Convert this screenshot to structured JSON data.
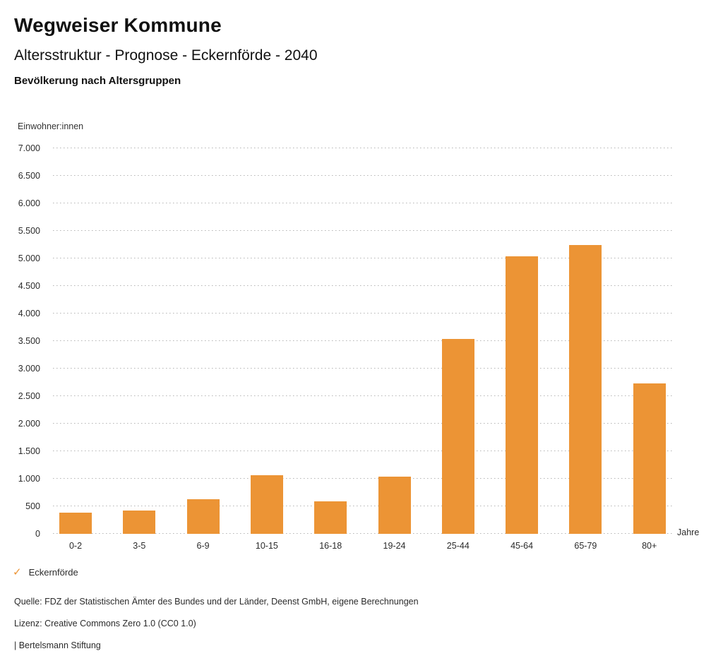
{
  "header": {
    "title": "Wegweiser Kommune",
    "subtitle": "Altersstruktur - Prognose - Eckernförde - 2040",
    "caption": "Bevölkerung nach Altersgruppen"
  },
  "chart_data": {
    "type": "bar",
    "title": "Bevölkerung nach Altersgruppen",
    "series_name": "Eckernförde",
    "categories": [
      "0-2",
      "3-5",
      "6-9",
      "10-15",
      "16-18",
      "19-24",
      "25-44",
      "45-64",
      "65-79",
      "80+"
    ],
    "values": [
      390,
      420,
      625,
      1060,
      590,
      1035,
      3540,
      5040,
      5240,
      2730
    ],
    "xlabel": "Jahre",
    "ylabel": "Einwohner:innen",
    "ylim": [
      0,
      7000
    ],
    "ytick_step": 500,
    "ytick_labels": [
      "0",
      "500",
      "1.000",
      "1.500",
      "2.000",
      "2.500",
      "3.000",
      "3.500",
      "4.000",
      "4.500",
      "5.000",
      "5.500",
      "6.000",
      "6.500",
      "7.000"
    ],
    "grid": "horizontal-dotted",
    "legend_position": "bottom-left",
    "bar_color": "#EC9435",
    "gridline_color": "#b4b4b4"
  },
  "legend": {
    "check_icon": "checkmark",
    "check_color": "#EC9435",
    "label": "Eckernförde"
  },
  "footer": {
    "source": "Quelle: FDZ der Statistischen Ämter des Bundes und der Länder, Deenst GmbH, eigene Berechnungen",
    "license": "Lizenz: Creative Commons Zero 1.0 (CC0 1.0)",
    "attribution": "| Bertelsmann Stiftung"
  }
}
